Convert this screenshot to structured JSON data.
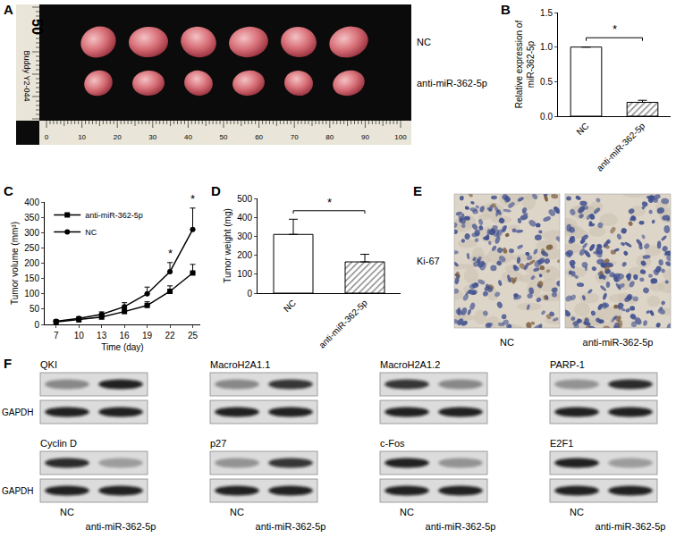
{
  "panel_labels": [
    "A",
    "B",
    "C",
    "D",
    "E",
    "F"
  ],
  "chart_data": [
    {
      "type": "bar",
      "categories": [
        "NC",
        "anti-miR-362-5p"
      ],
      "values": [
        1.0,
        0.2
      ],
      "errors": [
        0,
        0.03
      ],
      "colors": [
        "#ffffff",
        "#8c8c8c"
      ],
      "y_label": "Relative expression of\nmiR-362-5p",
      "ylim": [
        0,
        1.5
      ],
      "yticks": [
        {
          "value": 0,
          "label": "0.0"
        },
        0.5,
        {
          "value": 1,
          "label": "1.0"
        },
        1.5
      ],
      "significance": "*",
      "grid": false
    },
    {
      "type": "line",
      "x": [
        7,
        10,
        13,
        16,
        19,
        22,
        25
      ],
      "x_label": "Time (day)",
      "y_label": "Tumor volume (mm³)",
      "xlim": [
        5.5,
        26
      ],
      "xticks": [
        7,
        10,
        13,
        16,
        19,
        22,
        25
      ],
      "ylim": [
        0,
        400
      ],
      "yticks": [
        0,
        50,
        100,
        150,
        200,
        250,
        300,
        350,
        400
      ],
      "series": [
        {
          "name": "anti-miR-362-5p",
          "color": "#000000",
          "marker": "square",
          "values": [
            8,
            15,
            24,
            42,
            62,
            108,
            168
          ],
          "errors": [
            2,
            4,
            6,
            9,
            12,
            18,
            28
          ]
        },
        {
          "name": "NC",
          "color": "#000000",
          "marker": "circle",
          "values": [
            10,
            20,
            33,
            58,
            100,
            172,
            310
          ],
          "errors": [
            3,
            5,
            8,
            13,
            22,
            30,
            70
          ]
        }
      ],
      "legend": "top left",
      "significance": {
        "text": "*",
        "x": [
          22,
          25
        ]
      },
      "grid": false
    },
    {
      "type": "bar",
      "categories": [
        "NC",
        "anti-miR-362-5p"
      ],
      "values": [
        310,
        165
      ],
      "errors": [
        80,
        40
      ],
      "colors": [
        "#ffffff",
        "#8c8c8c"
      ],
      "y_label": "Tumor weight (mg)",
      "ylim": [
        0,
        500
      ],
      "yticks": [
        0,
        100,
        200,
        300,
        400,
        500
      ],
      "significance": "*",
      "grid": false
    }
  ],
  "panel_A": {
    "ruler_text": "Buddy Y2-044",
    "ruler_label": "50",
    "ruler_numbers": [
      "0",
      "10",
      "20",
      "30",
      "40",
      "50",
      "60",
      "70",
      "80",
      "90",
      "100"
    ],
    "groups": [
      {
        "label": "NC",
        "count": 6
      },
      {
        "label": "anti-miR-362-5p",
        "count": 6
      }
    ]
  },
  "panel_E": {
    "stain": "Ki-67",
    "images": [
      "NC",
      "anti-miR-362-5p"
    ]
  },
  "panel_F": {
    "loading_control": "GAPDH",
    "lanes": [
      "NC",
      "anti-miR-362-5p"
    ],
    "loading_intensity": [
      0.9,
      0.9
    ],
    "blots": [
      {
        "protein": "QKI",
        "intensity": [
          0.4,
          0.9
        ]
      },
      {
        "protein": "MacroH2A1.1",
        "intensity": [
          0.4,
          0.8
        ]
      },
      {
        "protein": "MacroH2A1.2",
        "intensity": [
          0.8,
          0.4
        ]
      },
      {
        "protein": "PARP-1",
        "intensity": [
          0.35,
          0.85
        ]
      },
      {
        "protein": "Cyclin D",
        "intensity": [
          0.85,
          0.3
        ]
      },
      {
        "protein": "p27",
        "intensity": [
          0.35,
          0.8
        ]
      },
      {
        "protein": "c-Fos",
        "intensity": [
          0.9,
          0.35
        ]
      },
      {
        "protein": "E2F1",
        "intensity": [
          0.9,
          0.3
        ]
      }
    ]
  }
}
